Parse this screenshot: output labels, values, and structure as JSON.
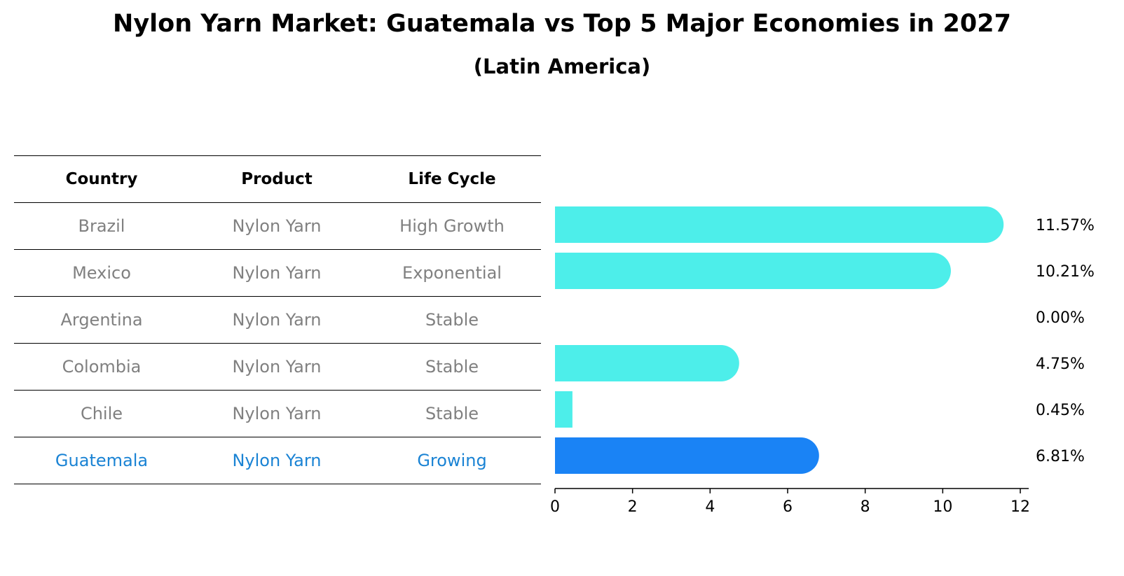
{
  "title": "Nylon Yarn Market: Guatemala vs Top 5 Major Economies in 2027",
  "subtitle": "(Latin America)",
  "table": {
    "headers": [
      "Country",
      "Product",
      "Life Cycle"
    ],
    "rows": [
      {
        "country": "Brazil",
        "product": "Nylon Yarn",
        "life_cycle": "High Growth"
      },
      {
        "country": "Mexico",
        "product": "Nylon Yarn",
        "life_cycle": "Exponential"
      },
      {
        "country": "Argentina",
        "product": "Nylon Yarn",
        "life_cycle": "Stable"
      },
      {
        "country": "Colombia",
        "product": "Nylon Yarn",
        "life_cycle": "Stable"
      },
      {
        "country": "Chile",
        "product": "Nylon Yarn",
        "life_cycle": "Stable"
      },
      {
        "country": "Guatemala",
        "product": "Nylon Yarn",
        "life_cycle": "Growing"
      }
    ]
  },
  "colors": {
    "bar": "#4deeea",
    "highlight_bar": "#1a83f5",
    "highlight_text": "#1a83d4",
    "table_text": "#808080"
  },
  "chart_data": {
    "type": "bar",
    "orientation": "horizontal",
    "categories": [
      "Brazil",
      "Mexico",
      "Argentina",
      "Colombia",
      "Chile",
      "Guatemala"
    ],
    "values": [
      11.57,
      10.21,
      0.0,
      4.75,
      0.45,
      6.81
    ],
    "value_labels": [
      "11.57%",
      "10.21%",
      "0.00%",
      "4.75%",
      "0.45%",
      "6.81%"
    ],
    "highlight": "Guatemala",
    "xlim": [
      0,
      12
    ],
    "xticks": [
      0,
      2,
      4,
      6,
      8,
      10,
      12
    ],
    "grid": false
  }
}
